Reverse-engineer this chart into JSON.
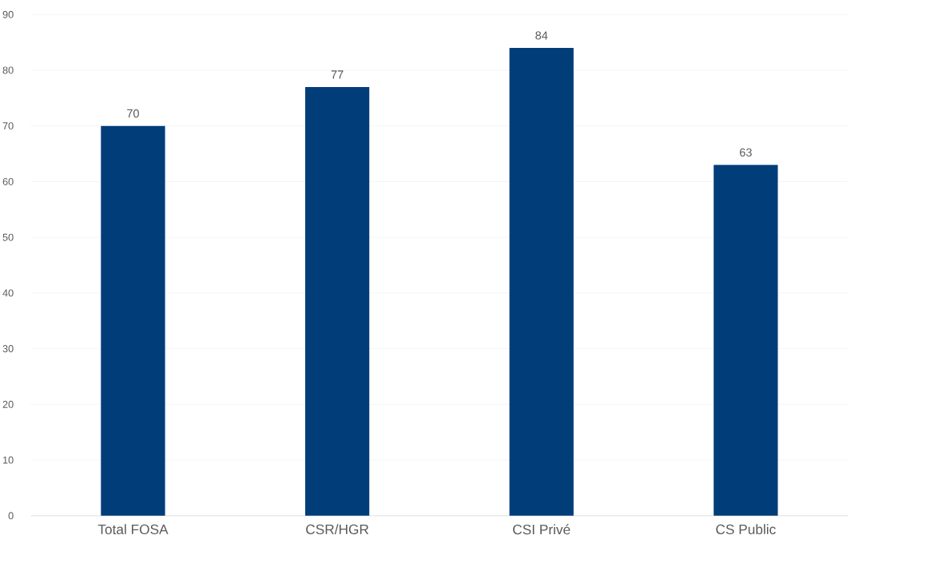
{
  "chart_data": {
    "type": "bar",
    "categories": [
      "Total FOSA",
      "CSR/HGR",
      "CSI Privé",
      "CS Public"
    ],
    "values": [
      70,
      77,
      84,
      63
    ],
    "color": "#003d79",
    "ylim": [
      0,
      90
    ],
    "yticks": [
      0,
      10,
      20,
      30,
      40,
      50,
      60,
      70,
      80,
      90
    ],
    "grid": "y",
    "data_labels": true
  }
}
